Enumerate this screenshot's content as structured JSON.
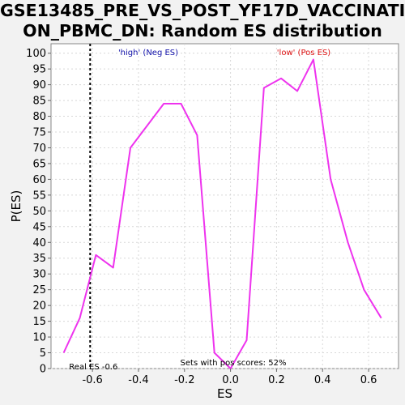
{
  "chart_data": {
    "type": "line",
    "title": "GSE13485_PRE_VS_POST_YF17D_VACCINATION_PBMC_DN: Random ES distribution",
    "title_lines": [
      "GSE13485_PRE_VS_POST_YF17D_VACCINATI",
      "ON_PBMC_DN: Random ES distribution"
    ],
    "xlabel": "ES",
    "ylabel": "P(ES)",
    "xlim": [
      -0.78,
      0.73
    ],
    "ylim": [
      0,
      103
    ],
    "x_ticks": [
      -0.6,
      -0.4,
      -0.2,
      0.0,
      0.2,
      0.4,
      0.6
    ],
    "x_tick_labels": [
      "-0.6",
      "-0.4",
      "-0.2",
      "0.0",
      "0.2",
      "0.4",
      "0.6"
    ],
    "y_ticks": [
      0,
      5,
      10,
      15,
      20,
      25,
      30,
      35,
      40,
      45,
      50,
      55,
      60,
      65,
      70,
      75,
      80,
      85,
      90,
      95,
      100
    ],
    "y_tick_labels": [
      "0",
      "5",
      "10",
      "15",
      "20",
      "25",
      "30",
      "35",
      "40",
      "45",
      "50",
      "55",
      "60",
      "65",
      "70",
      "75",
      "80",
      "85",
      "90",
      "95",
      "100"
    ],
    "grid": true,
    "series": [
      {
        "color": "#ee33ee",
        "x": [
          -0.725,
          -0.655,
          -0.585,
          -0.51,
          -0.435,
          -0.29,
          -0.215,
          -0.145,
          -0.07,
          0.0,
          0.07,
          0.145,
          0.22,
          0.29,
          0.36,
          0.435,
          0.51,
          0.58,
          0.655
        ],
        "y": [
          5,
          16,
          36,
          32,
          70,
          84,
          84,
          74,
          5,
          0,
          9,
          89,
          92,
          88,
          98,
          60,
          40,
          25,
          16
        ]
      }
    ],
    "reference_line": {
      "x": -0.61,
      "label": "Real ES -0.6"
    },
    "annotations": {
      "high": {
        "text": "'high' (Neg ES)",
        "color": "#1111aa"
      },
      "low": {
        "text": "'low' (Pos ES)",
        "color": "#dd1111"
      },
      "sets": {
        "text": "Sets with pos scores: 52%",
        "color": "#000000"
      }
    }
  }
}
